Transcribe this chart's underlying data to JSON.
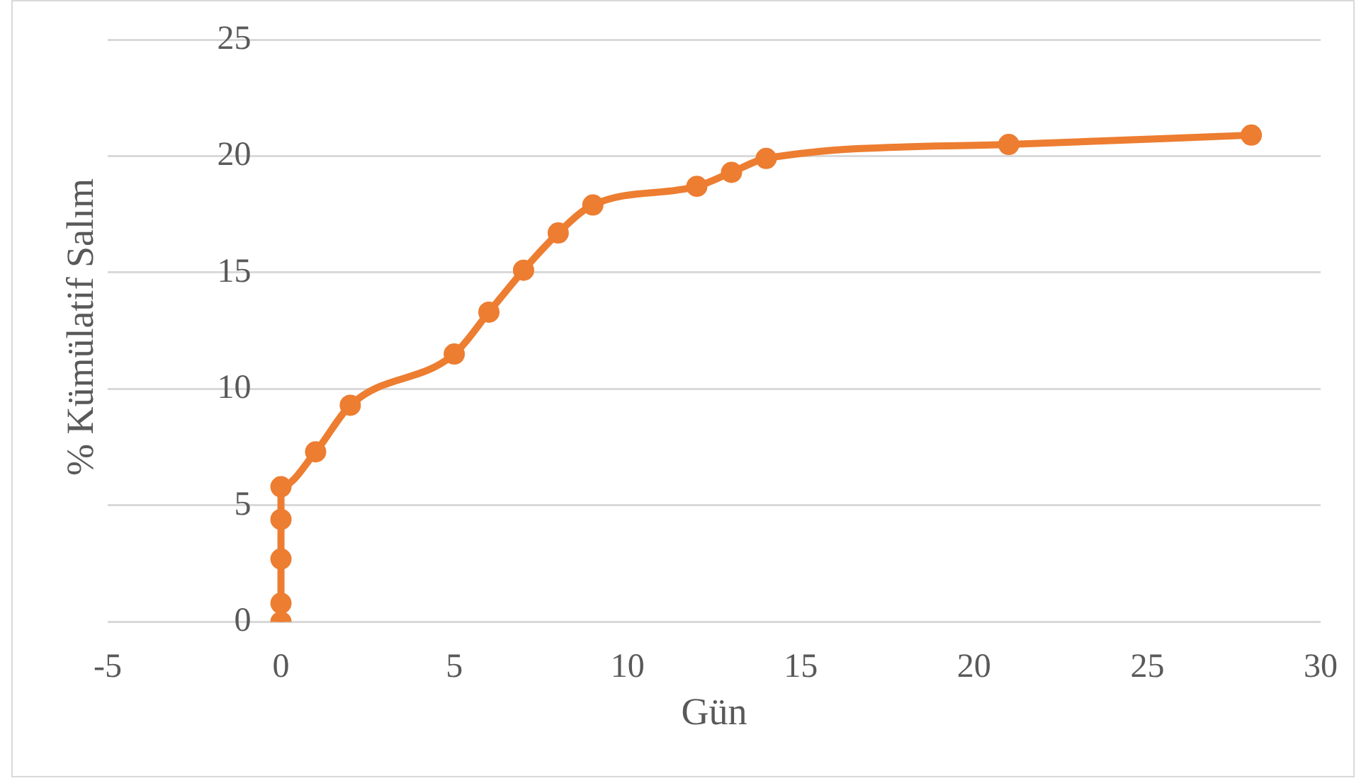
{
  "chart_data": {
    "type": "line",
    "xlabel": "Gün",
    "ylabel": "% Kümülatif Salım",
    "x": [
      0,
      0,
      0,
      0,
      0,
      1,
      2,
      5,
      6,
      7,
      8,
      9,
      12,
      13,
      14,
      21,
      28
    ],
    "series": [
      {
        "color": "#ed7d31",
        "values": [
          0,
          0.8,
          2.7,
          4.4,
          5.8,
          7.3,
          9.3,
          11.5,
          13.3,
          15.1,
          16.7,
          17.9,
          18.7,
          19.3,
          19.9,
          20.5,
          20.9
        ]
      }
    ],
    "xlim": [
      -5,
      30
    ],
    "xticks": [
      -5,
      0,
      5,
      10,
      15,
      20,
      25,
      30
    ],
    "ylim": [
      0,
      25
    ],
    "yticks": [
      0,
      5,
      10,
      15,
      20,
      25
    ],
    "grid": "y",
    "legend": false,
    "marker": "circle",
    "line_style": "solid"
  }
}
